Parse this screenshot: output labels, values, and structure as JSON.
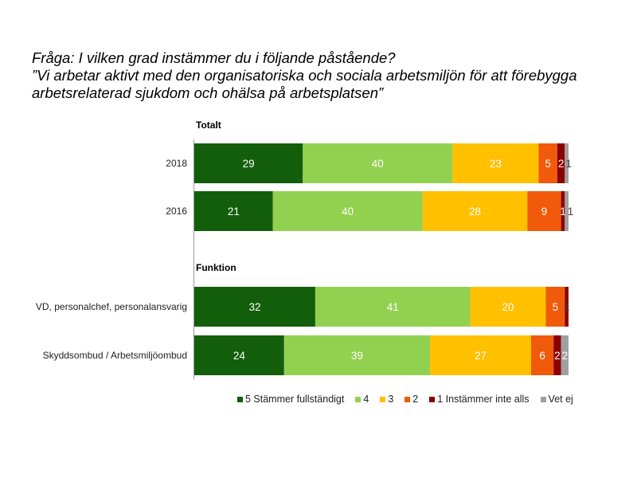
{
  "title_lines": [
    "Fråga: I vilken grad instämmer du i följande påstående?",
    "”Vi arbetar aktivt med den organisatoriska och sociala arbetsmiljön för att förebygga",
    "arbetsrelaterad sjukdom och ohälsa på arbetsplatsen”"
  ],
  "chart_data": {
    "type": "bar",
    "orientation": "horizontal",
    "stacked": true,
    "groups": [
      {
        "label": "Totalt",
        "categories": [
          "2018",
          "2016"
        ]
      },
      {
        "label": "Funktion",
        "categories": [
          "VD, personalchef, personalansvarig",
          "Skyddsombud / Arbetsmiljöombud"
        ]
      }
    ],
    "categories": [
      "2018",
      "2016",
      "VD, personalchef, personalansvarig",
      "Skyddsombud / Arbetsmiljöombud"
    ],
    "series": [
      {
        "name": "5 Stämmer fullständigt",
        "color": "#135e0a",
        "values": [
          29,
          21,
          32,
          24
        ]
      },
      {
        "name": "4",
        "color": "#92d050",
        "values": [
          40,
          40,
          41,
          39
        ]
      },
      {
        "name": "3",
        "color": "#ffc000",
        "values": [
          23,
          28,
          20,
          27
        ]
      },
      {
        "name": "2",
        "color": "#f05a0a",
        "values": [
          5,
          9,
          5,
          6
        ]
      },
      {
        "name": "1 Instämmer inte alls",
        "color": "#8b0000",
        "values": [
          2,
          1,
          1,
          2
        ]
      },
      {
        "name": "Vet ej",
        "color": "#a0a0a0",
        "values": [
          1,
          1,
          0,
          2
        ]
      }
    ],
    "legend_position": "bottom",
    "grid": false
  }
}
